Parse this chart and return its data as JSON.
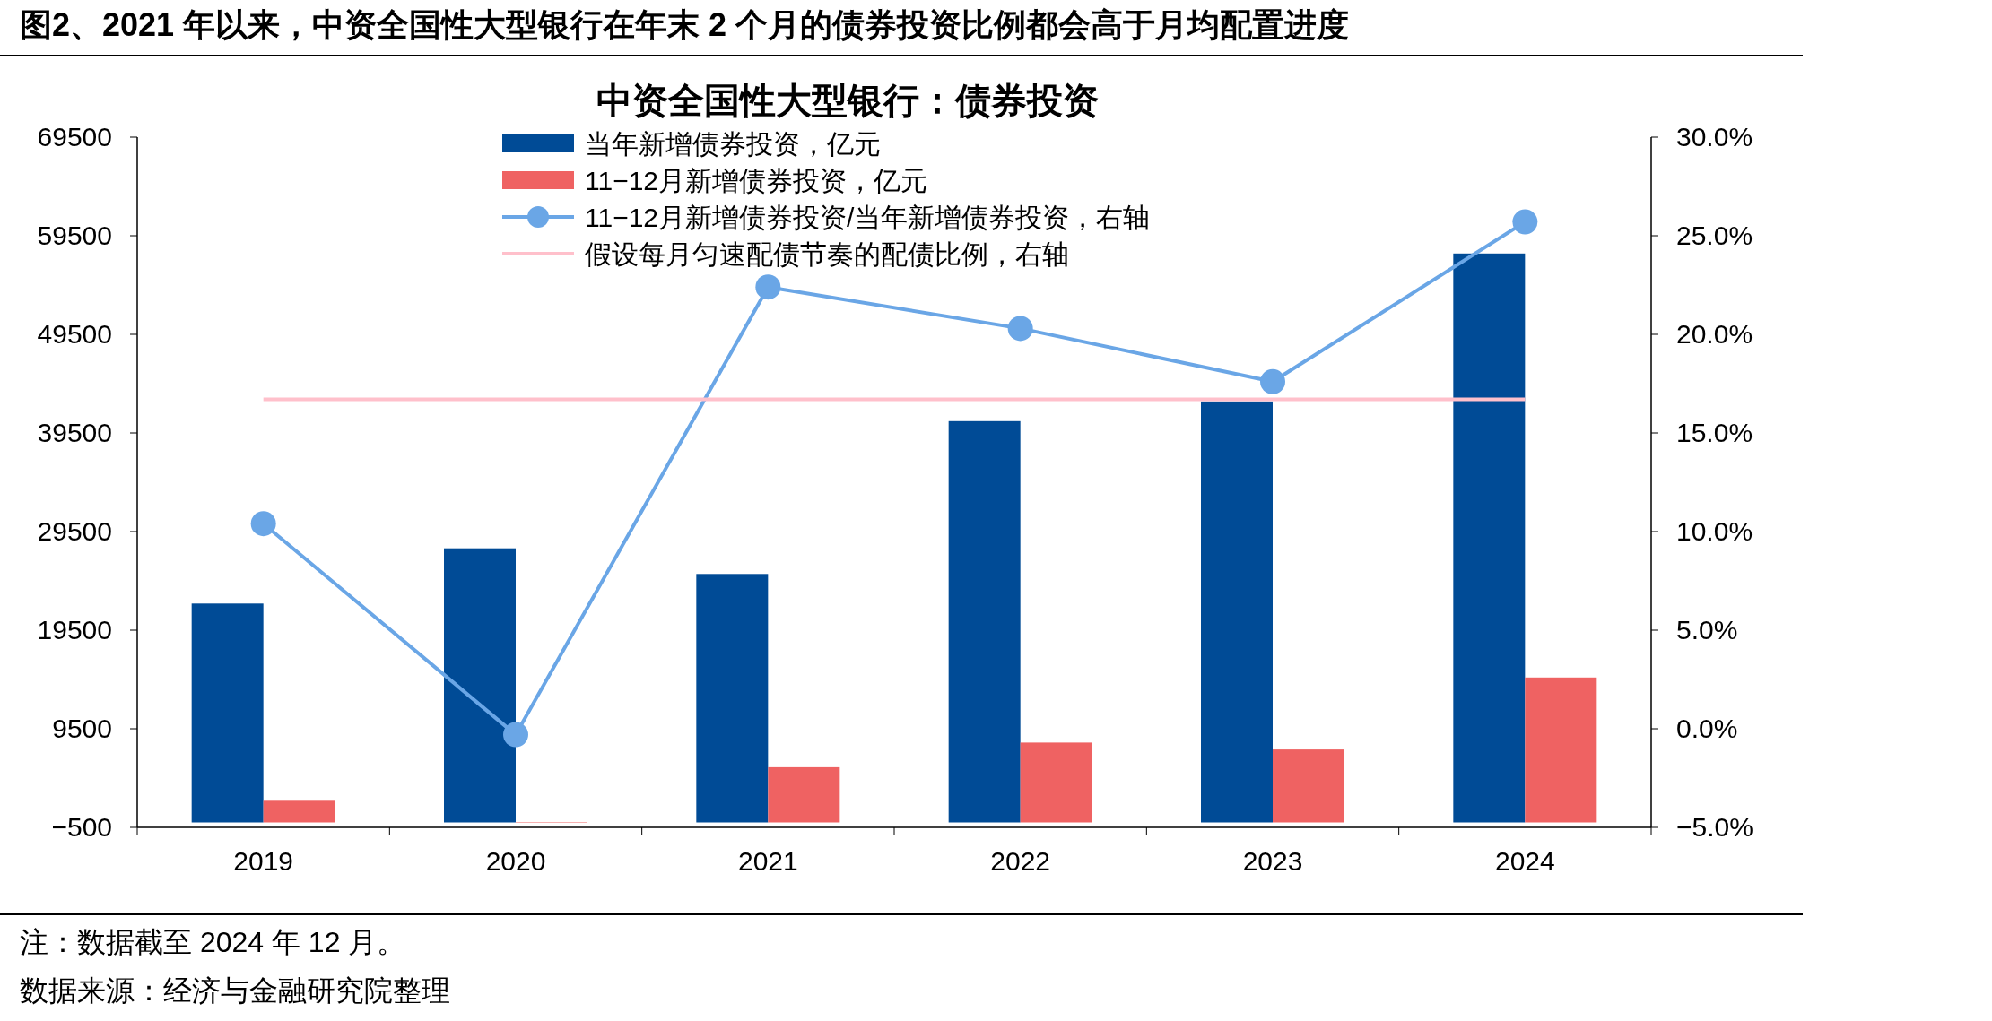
{
  "chart_data": {
    "type": "bar",
    "title": "图2、2021 年以来，中资全国性大型银行在年末 2 个月的债券投资比例都会高于月均配置进度",
    "subtitle": "中资全国性大型银行：债券投资",
    "categories": [
      "2019",
      "2020",
      "2021",
      "2022",
      "2023",
      "2024"
    ],
    "series": [
      {
        "name": "当年新增债券投资，亿元",
        "color": "#004b96",
        "values": [
          22200,
          27800,
          25200,
          40700,
          42700,
          57700
        ]
      },
      {
        "name": "11−12月新增债券投资，亿元",
        "color": "#ef6262",
        "values": [
          2200,
          0,
          5600,
          8100,
          7400,
          14700
        ]
      },
      {
        "name": "11−12月新增债券投资/当年新增债券投资，右轴",
        "type": "line",
        "axis": "y2",
        "marker": "circle",
        "color": "#6aa6e6",
        "values": [
          10.4,
          -0.3,
          22.4,
          20.3,
          17.6,
          25.7
        ]
      },
      {
        "name": "假设每月匀速配债节奏的配债比例，右轴",
        "type": "line",
        "axis": "y2",
        "marker": "none",
        "color": "#ffc0cb",
        "values": [
          16.7,
          16.7,
          16.7,
          16.7,
          16.7,
          16.7
        ]
      }
    ],
    "ylim": [
      -500,
      69500
    ],
    "yticks": [
      -500,
      9500,
      19500,
      29500,
      39500,
      49500,
      59500,
      69500
    ],
    "y2lim": [
      -5,
      30
    ],
    "y2ticks": [
      {
        "value": -5,
        "label": "−5.0%"
      },
      {
        "value": 0,
        "label": "0.0%"
      },
      {
        "value": 5,
        "label": "5.0%"
      },
      {
        "value": 10,
        "label": "10.0%"
      },
      {
        "value": 15,
        "label": "15.0%"
      },
      {
        "value": 20,
        "label": "20.0%"
      },
      {
        "value": 25,
        "label": "25.0%"
      },
      {
        "value": 30,
        "label": "30.0%"
      }
    ],
    "legend": "top",
    "grid": false,
    "annotations": [
      "注：数据截至 2024 年 12 月。",
      "数据来源：经济与金融研究院整理"
    ]
  }
}
